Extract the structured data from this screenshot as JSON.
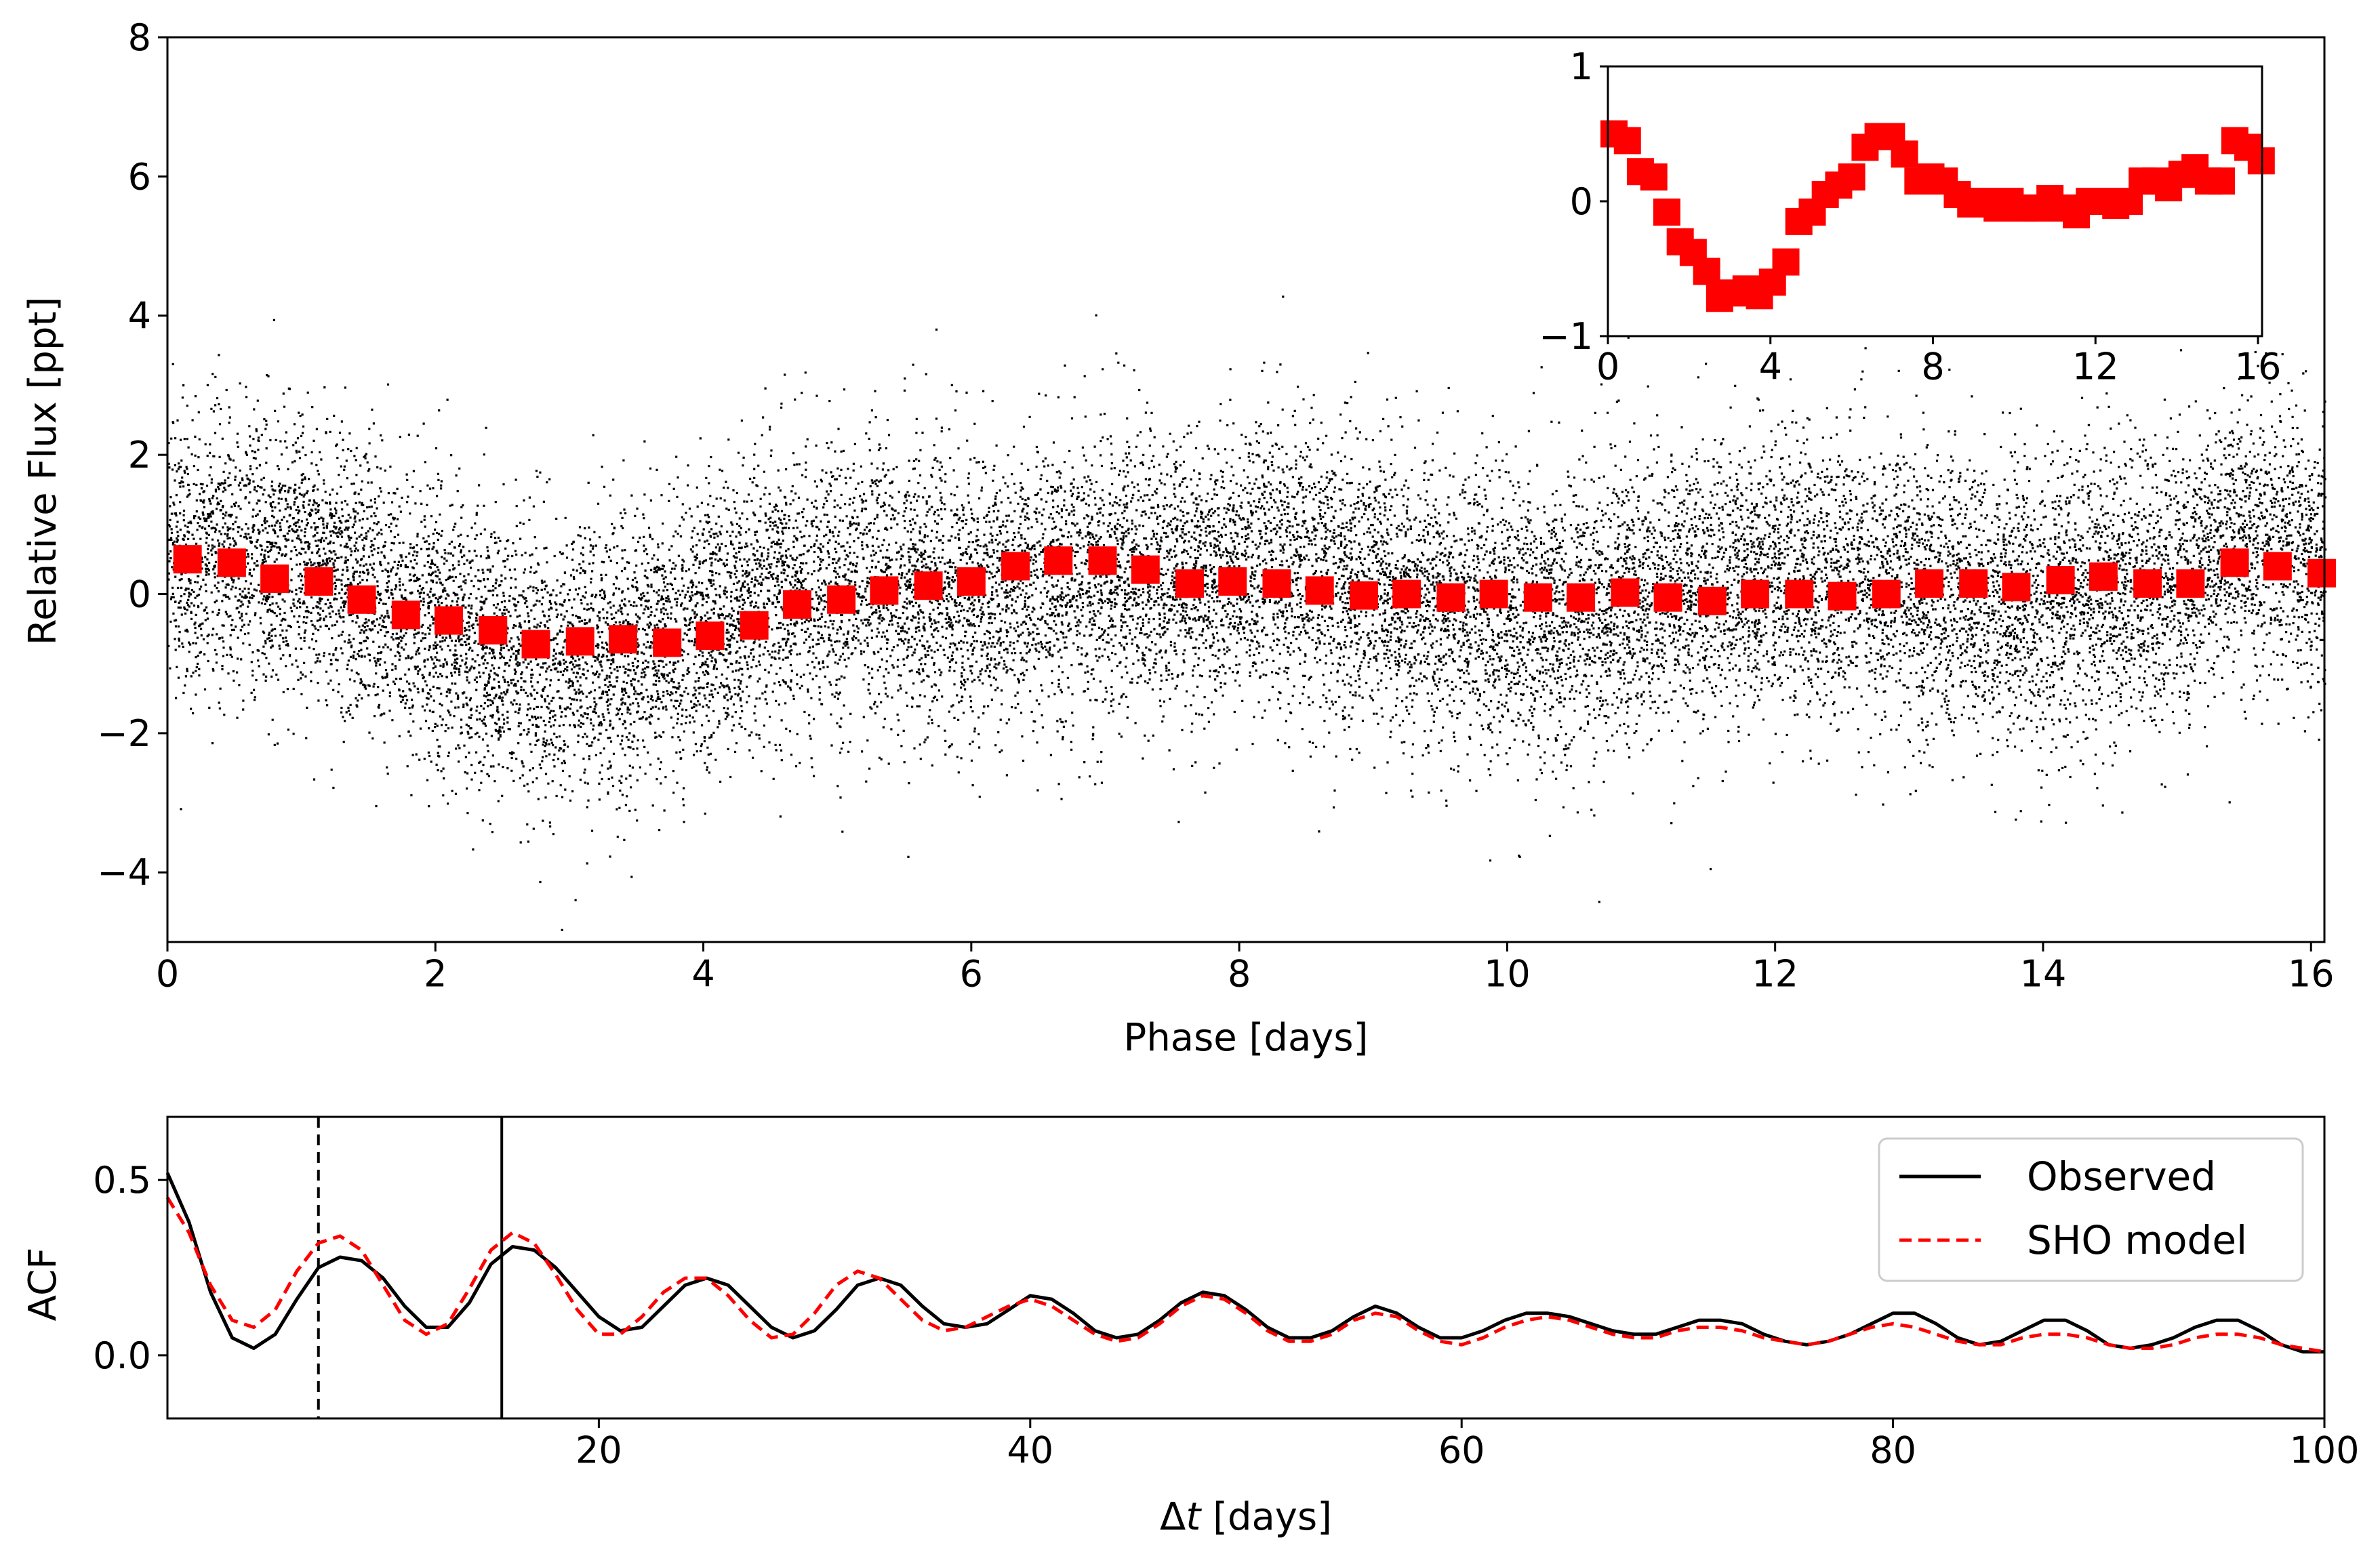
{
  "chart_data": [
    {
      "type": "scatter",
      "panel": "phase-folded light curve",
      "xlabel": "Phase [days]",
      "ylabel": "Relative Flux [ppt]",
      "xlim": [
        0,
        16.1
      ],
      "ylim": [
        -5,
        8
      ],
      "xticks": [
        0,
        2,
        4,
        6,
        8,
        10,
        12,
        14,
        16
      ],
      "yticks": [
        -4,
        -2,
        0,
        2,
        4,
        6,
        8
      ],
      "series": [
        {
          "name": "Raw photometry",
          "color": "#000000",
          "marker": "dot",
          "description": "~20000 points, scatter about the binned curve with sigma ~1 ppt",
          "n_points": 20000
        },
        {
          "name": "Binned flux",
          "color": "#ff0000",
          "marker": "square",
          "x": [
            0.15,
            0.48,
            0.8,
            1.13,
            1.45,
            1.78,
            2.1,
            2.43,
            2.75,
            3.08,
            3.4,
            3.73,
            4.05,
            4.38,
            4.7,
            5.03,
            5.35,
            5.68,
            6.0,
            6.33,
            6.65,
            6.98,
            7.3,
            7.63,
            7.95,
            8.28,
            8.6,
            8.93,
            9.25,
            9.58,
            9.9,
            10.23,
            10.55,
            10.88,
            11.2,
            11.53,
            11.85,
            12.18,
            12.5,
            12.83,
            13.15,
            13.48,
            13.8,
            14.13,
            14.45,
            14.78,
            15.1,
            15.43,
            15.75,
            16.08
          ],
          "y": [
            0.5,
            0.45,
            0.22,
            0.18,
            -0.08,
            -0.3,
            -0.38,
            -0.52,
            -0.72,
            -0.68,
            -0.65,
            -0.7,
            -0.6,
            -0.45,
            -0.15,
            -0.08,
            0.05,
            0.12,
            0.18,
            0.4,
            0.48,
            0.48,
            0.35,
            0.15,
            0.18,
            0.15,
            0.05,
            -0.02,
            0.0,
            -0.05,
            0.0,
            -0.05,
            -0.05,
            0.02,
            -0.05,
            -0.1,
            0.0,
            0.0,
            -0.03,
            0.0,
            0.15,
            0.15,
            0.1,
            0.2,
            0.25,
            0.15,
            0.15,
            0.45,
            0.4,
            0.3
          ]
        }
      ]
    },
    {
      "type": "scatter",
      "panel": "inset",
      "xlim": [
        0,
        16.1
      ],
      "ylim": [
        -1,
        1
      ],
      "xticks": [
        0,
        4,
        8,
        12,
        16
      ],
      "yticks": [
        -1,
        0,
        1
      ],
      "series": [
        {
          "name": "Binned flux (zoom)",
          "color": "#ff0000",
          "marker": "square",
          "x": [
            0.15,
            0.48,
            0.8,
            1.13,
            1.45,
            1.78,
            2.1,
            2.43,
            2.75,
            3.08,
            3.4,
            3.73,
            4.05,
            4.38,
            4.7,
            5.03,
            5.35,
            5.68,
            6.0,
            6.33,
            6.65,
            6.98,
            7.3,
            7.63,
            7.95,
            8.28,
            8.6,
            8.93,
            9.25,
            9.58,
            9.9,
            10.23,
            10.55,
            10.88,
            11.2,
            11.53,
            11.85,
            12.18,
            12.5,
            12.83,
            13.15,
            13.48,
            13.8,
            14.13,
            14.45,
            14.78,
            15.1,
            15.43,
            15.75,
            16.08
          ],
          "y": [
            0.5,
            0.45,
            0.22,
            0.18,
            -0.08,
            -0.3,
            -0.38,
            -0.52,
            -0.72,
            -0.68,
            -0.65,
            -0.7,
            -0.6,
            -0.45,
            -0.15,
            -0.08,
            0.05,
            0.12,
            0.18,
            0.4,
            0.48,
            0.48,
            0.35,
            0.15,
            0.18,
            0.15,
            0.05,
            -0.02,
            0.0,
            -0.05,
            0.0,
            -0.05,
            -0.05,
            0.02,
            -0.05,
            -0.1,
            0.0,
            0.0,
            -0.03,
            0.0,
            0.15,
            0.15,
            0.1,
            0.2,
            0.25,
            0.15,
            0.15,
            0.45,
            0.4,
            0.3
          ]
        }
      ]
    },
    {
      "type": "line",
      "panel": "autocorrelation function",
      "xlabel_prefix": "Δ",
      "xlabel_var": "t",
      "xlabel_suffix": " [days]",
      "ylabel": "ACF",
      "xlim": [
        0,
        100
      ],
      "ylim": [
        -0.18,
        0.68
      ],
      "xticks": [
        20,
        40,
        60,
        80,
        100
      ],
      "yticks": [
        0.0,
        0.5
      ],
      "ytick_labels": [
        "0.0",
        "0.5"
      ],
      "vlines": [
        {
          "x": 7.0,
          "style": "dashed",
          "color": "#000000"
        },
        {
          "x": 15.5,
          "style": "solid",
          "color": "#000000"
        }
      ],
      "legend": {
        "position": "top-right",
        "entries": [
          "Observed",
          "SHO model"
        ]
      },
      "series": [
        {
          "name": "Observed",
          "color": "#000000",
          "style": "solid",
          "x": [
            0.0,
            1.0,
            2.0,
            3.0,
            4.0,
            5.0,
            6.0,
            7.0,
            8.0,
            9.0,
            10.0,
            11.0,
            12.0,
            13.0,
            14.0,
            15.0,
            16.0,
            17.0,
            18.0,
            19.0,
            20.0,
            21.0,
            22.0,
            23.0,
            24.0,
            25.0,
            26.0,
            27.0,
            28.0,
            29.0,
            30.0,
            31.0,
            32.0,
            33.0,
            34.0,
            35.0,
            36.0,
            37.0,
            38.0,
            39.0,
            40.0,
            41.0,
            42.0,
            43.0,
            44.0,
            45.0,
            46.0,
            47.0,
            48.0,
            49.0,
            50.0,
            51.0,
            52.0,
            53.0,
            54.0,
            55.0,
            56.0,
            57.0,
            58.0,
            59.0,
            60.0,
            61.0,
            62.0,
            63.0,
            64.0,
            65.0,
            66.0,
            67.0,
            68.0,
            69.0,
            70.0,
            71.0,
            72.0,
            73.0,
            74.0,
            75.0,
            76.0,
            77.0,
            78.0,
            79.0,
            80.0,
            81.0,
            82.0,
            83.0,
            84.0,
            85.0,
            86.0,
            87.0,
            88.0,
            89.0,
            90.0,
            91.0,
            92.0,
            93.0,
            94.0,
            95.0,
            96.0,
            97.0,
            98.0,
            99.0,
            100.0
          ],
          "y": [
            0.52,
            0.38,
            0.18,
            0.05,
            0.02,
            0.06,
            0.16,
            0.25,
            0.28,
            0.27,
            0.22,
            0.14,
            0.08,
            0.08,
            0.15,
            0.26,
            0.31,
            0.3,
            0.25,
            0.18,
            0.11,
            0.07,
            0.08,
            0.14,
            0.2,
            0.22,
            0.2,
            0.14,
            0.08,
            0.05,
            0.07,
            0.13,
            0.2,
            0.22,
            0.2,
            0.14,
            0.09,
            0.08,
            0.09,
            0.13,
            0.17,
            0.16,
            0.12,
            0.07,
            0.05,
            0.06,
            0.1,
            0.15,
            0.18,
            0.17,
            0.13,
            0.08,
            0.05,
            0.05,
            0.07,
            0.11,
            0.14,
            0.12,
            0.08,
            0.05,
            0.05,
            0.07,
            0.1,
            0.12,
            0.12,
            0.11,
            0.09,
            0.07,
            0.06,
            0.06,
            0.08,
            0.1,
            0.1,
            0.09,
            0.06,
            0.04,
            0.03,
            0.04,
            0.06,
            0.09,
            0.12,
            0.12,
            0.09,
            0.05,
            0.03,
            0.04,
            0.07,
            0.1,
            0.1,
            0.07,
            0.03,
            0.02,
            0.03,
            0.05,
            0.08,
            0.1,
            0.1,
            0.07,
            0.03,
            0.01,
            0.01
          ]
        },
        {
          "name": "SHO model",
          "color": "#ff0000",
          "style": "dashed",
          "x": [
            0.0,
            1.0,
            2.0,
            3.0,
            4.0,
            5.0,
            6.0,
            7.0,
            8.0,
            9.0,
            10.0,
            11.0,
            12.0,
            13.0,
            14.0,
            15.0,
            16.0,
            17.0,
            18.0,
            19.0,
            20.0,
            21.0,
            22.0,
            23.0,
            24.0,
            25.0,
            26.0,
            27.0,
            28.0,
            29.0,
            30.0,
            31.0,
            32.0,
            33.0,
            34.0,
            35.0,
            36.0,
            37.0,
            38.0,
            39.0,
            40.0,
            41.0,
            42.0,
            43.0,
            44.0,
            45.0,
            46.0,
            47.0,
            48.0,
            49.0,
            50.0,
            51.0,
            52.0,
            53.0,
            54.0,
            55.0,
            56.0,
            57.0,
            58.0,
            59.0,
            60.0,
            61.0,
            62.0,
            63.0,
            64.0,
            65.0,
            66.0,
            67.0,
            68.0,
            69.0,
            70.0,
            71.0,
            72.0,
            73.0,
            74.0,
            75.0,
            76.0,
            77.0,
            78.0,
            79.0,
            80.0,
            81.0,
            82.0,
            83.0,
            84.0,
            85.0,
            86.0,
            87.0,
            88.0,
            89.0,
            90.0,
            91.0,
            92.0,
            93.0,
            94.0,
            95.0,
            96.0,
            97.0,
            98.0,
            99.0,
            100.0
          ],
          "y": [
            0.45,
            0.35,
            0.2,
            0.1,
            0.08,
            0.13,
            0.24,
            0.32,
            0.34,
            0.3,
            0.2,
            0.1,
            0.06,
            0.09,
            0.19,
            0.3,
            0.35,
            0.32,
            0.23,
            0.13,
            0.06,
            0.06,
            0.11,
            0.18,
            0.22,
            0.22,
            0.17,
            0.1,
            0.05,
            0.06,
            0.12,
            0.2,
            0.24,
            0.22,
            0.16,
            0.1,
            0.07,
            0.08,
            0.11,
            0.14,
            0.16,
            0.14,
            0.1,
            0.06,
            0.04,
            0.05,
            0.09,
            0.14,
            0.17,
            0.16,
            0.12,
            0.07,
            0.04,
            0.04,
            0.06,
            0.1,
            0.12,
            0.11,
            0.07,
            0.04,
            0.03,
            0.05,
            0.08,
            0.1,
            0.11,
            0.1,
            0.08,
            0.06,
            0.05,
            0.05,
            0.07,
            0.08,
            0.08,
            0.07,
            0.05,
            0.04,
            0.03,
            0.04,
            0.06,
            0.08,
            0.09,
            0.08,
            0.06,
            0.04,
            0.03,
            0.03,
            0.05,
            0.06,
            0.06,
            0.05,
            0.03,
            0.02,
            0.02,
            0.03,
            0.05,
            0.06,
            0.06,
            0.05,
            0.03,
            0.02,
            0.01
          ]
        }
      ]
    }
  ]
}
